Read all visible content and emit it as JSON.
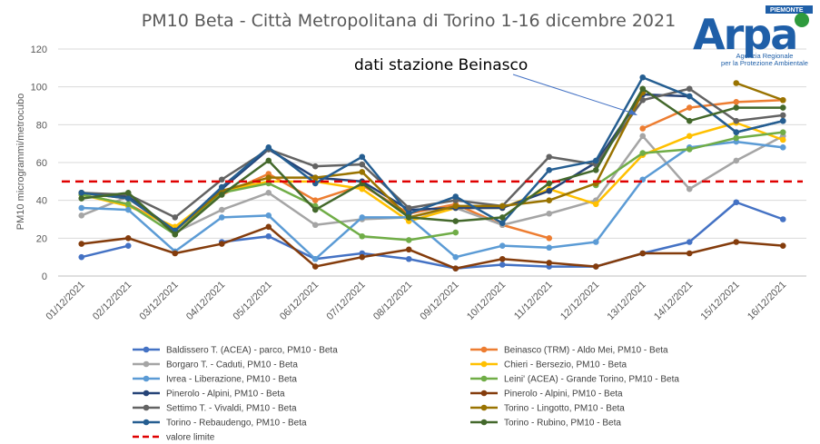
{
  "chart_data": {
    "type": "line",
    "title": "PM10 Beta - Città Metropolitana di Torino 1-16 dicembre 2021",
    "ylabel": "PM10 microgrammi/metrocubo",
    "xlabel": "",
    "ylim": [
      0,
      120
    ],
    "yticks": [
      0,
      20,
      40,
      60,
      80,
      100,
      120
    ],
    "grid": true,
    "legend_position": "bottom",
    "annotation": "dati stazione Beinasco",
    "categories": [
      "01/12/2021",
      "02/12/2021",
      "03/12/2021",
      "04/12/2021",
      "05/12/2021",
      "06/12/2021",
      "07/12/2021",
      "08/12/2021",
      "09/12/2021",
      "10/12/2021",
      "11/12/2021",
      "12/12/2021",
      "13/12/2021",
      "14/12/2021",
      "15/12/2021",
      "16/12/2021"
    ],
    "series": [
      {
        "name": "Baldissero T. (ACEA) - parco, PM10 - Beta",
        "color": "#4472c4",
        "values": [
          10,
          16,
          null,
          18,
          21,
          9,
          12,
          9,
          4,
          6,
          5,
          5,
          12,
          18,
          39,
          30
        ]
      },
      {
        "name": "Beinasco (TRM) - Aldo Mei, PM10 - Beta",
        "color": "#ed7d31",
        "values": [
          43,
          38,
          25,
          43,
          54,
          40,
          48,
          33,
          38,
          27,
          20,
          null,
          78,
          89,
          92,
          93
        ]
      },
      {
        "name": "Borgaro T. - Caduti, PM10 - Beta",
        "color": "#a5a5a5",
        "values": [
          32,
          42,
          23,
          35,
          44,
          27,
          30,
          31,
          36,
          27,
          33,
          40,
          74,
          46,
          61,
          74
        ]
      },
      {
        "name": "Chieri - Bersezio, PM10 - Beta",
        "color": "#ffc000",
        "values": [
          43,
          37,
          26,
          45,
          50,
          50,
          46,
          29,
          36,
          36,
          46,
          38,
          64,
          74,
          81,
          72
        ]
      },
      {
        "name": "Ivrea - Liberazione, PM10 - Beta",
        "color": "#5b9bd5",
        "values": [
          36,
          35,
          13,
          31,
          32,
          9,
          31,
          31,
          10,
          16,
          15,
          18,
          51,
          68,
          71,
          68
        ]
      },
      {
        "name": "Leini' (ACEA) - Grande Torino, PM10 - Beta",
        "color": "#70ad47",
        "values": [
          43,
          38,
          22,
          44,
          49,
          37,
          21,
          19,
          23,
          null,
          null,
          48,
          65,
          67,
          73,
          76
        ]
      },
      {
        "name": "Pinerolo - Alpini, PM10 - Beta",
        "color": "#264478",
        "values": [
          44,
          42,
          24,
          46,
          67,
          52,
          50,
          35,
          36,
          36,
          45,
          60,
          96,
          95,
          76,
          82
        ]
      },
      {
        "name": "Pinerolo - Alpini, PM10 - Beta",
        "color": "#843c0c",
        "values": [
          17,
          20,
          12,
          17,
          26,
          5,
          10,
          14,
          4,
          9,
          7,
          5,
          12,
          12,
          18,
          16
        ]
      },
      {
        "name": "Settimo T. - Vivaldi, PM10 - Beta",
        "color": "#636363",
        "values": [
          44,
          43,
          31,
          51,
          67,
          58,
          59,
          36,
          40,
          37,
          63,
          59,
          93,
          99,
          82,
          85
        ]
      },
      {
        "name": "Torino - Lingotto, PM10 - Beta",
        "color": "#997300",
        "values": [
          44,
          41,
          24,
          45,
          52,
          52,
          55,
          31,
          37,
          37,
          40,
          49,
          97,
          null,
          102,
          93
        ]
      },
      {
        "name": "Torino - Rebaudengo, PM10 - Beta",
        "color": "#255e91",
        "values": [
          44,
          41,
          24,
          47,
          68,
          49,
          63,
          33,
          42,
          28,
          56,
          61,
          105,
          95,
          76,
          82
        ]
      },
      {
        "name": "Torino - Rubino, PM10 - Beta",
        "color": "#43682b",
        "values": [
          41,
          44,
          22,
          43,
          61,
          35,
          49,
          31,
          29,
          31,
          49,
          56,
          99,
          82,
          89,
          89
        ]
      },
      {
        "name": "valore limite",
        "color": "#e00000",
        "dashed": true,
        "values": [
          50,
          50,
          50,
          50,
          50,
          50,
          50,
          50,
          50,
          50,
          50,
          50,
          50,
          50,
          50,
          50
        ]
      }
    ]
  },
  "logo": {
    "region": "PIEMONTE",
    "name": "Arpa",
    "line1": "Agenzia Regionale",
    "line2": "per la Protezione Ambientale",
    "color": "#1f5fa8",
    "accent": "#2e9a3d"
  }
}
